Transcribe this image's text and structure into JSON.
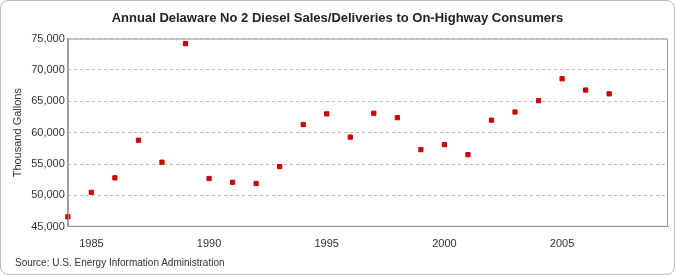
{
  "chart_data": {
    "type": "scatter",
    "title": "Annual Delaware No 2 Diesel Sales/Deliveries to On-Highway Consumers",
    "y_label": "Thousand Gallons",
    "source": "Source: U.S. Energy Information Administration",
    "x": [
      1984,
      1985,
      1986,
      1987,
      1988,
      1989,
      1990,
      1991,
      1992,
      1993,
      1994,
      1995,
      1996,
      1997,
      1998,
      1999,
      2000,
      2001,
      2002,
      2003,
      2004,
      2005,
      2006,
      2007
    ],
    "values": [
      46600,
      50500,
      52800,
      58800,
      55300,
      74200,
      52700,
      52100,
      51900,
      54600,
      61300,
      63000,
      59300,
      63100,
      62400,
      57300,
      58100,
      56500,
      62000,
      63300,
      65100,
      68600,
      66800,
      66200
    ],
    "color": "#cc0000",
    "marker": "square",
    "xlim": [
      1984,
      2009.5
    ],
    "xticks": [
      1985,
      1990,
      1995,
      2000,
      2005
    ],
    "ylim": [
      45000,
      75000
    ],
    "yticks": [
      {
        "value": 45000,
        "label": "45,000"
      },
      {
        "value": 50000,
        "label": "50,000"
      },
      {
        "value": 55000,
        "label": "55,000"
      },
      {
        "value": 60000,
        "label": "60,000"
      },
      {
        "value": 65000,
        "label": "65,000"
      },
      {
        "value": 70000,
        "label": "70,000"
      },
      {
        "value": 75000,
        "label": "75,000"
      }
    ],
    "grid": true
  }
}
